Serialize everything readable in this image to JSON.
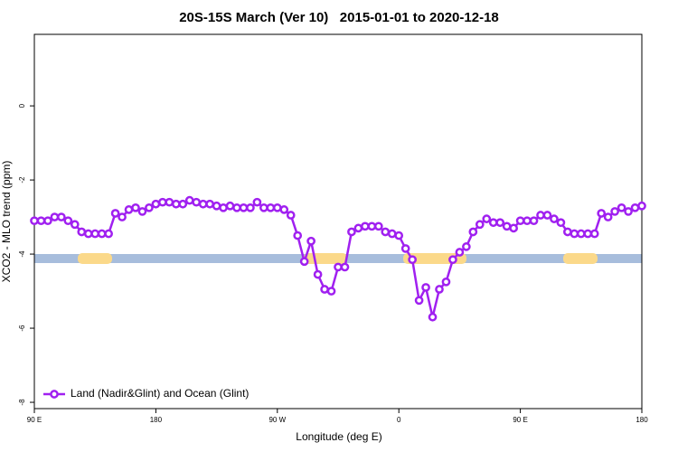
{
  "chart_data": {
    "type": "line",
    "title": "20S-15S March (Ver 10)   2015-01-01 to 2020-12-18",
    "xlabel": "Longitude (deg E)",
    "ylabel": "XCO2 - MLO trend (ppm)",
    "xlim": [
      90,
      540
    ],
    "ylim": [
      -8.17,
      1.93
    ],
    "xticks": [
      {
        "value": 90,
        "label": "90 E"
      },
      {
        "value": 180,
        "label": "180"
      },
      {
        "value": 270,
        "label": "90 W"
      },
      {
        "value": 360,
        "label": "0"
      },
      {
        "value": 450,
        "label": "90 E"
      },
      {
        "value": 540,
        "label": "180"
      }
    ],
    "yticks": [
      0,
      -2,
      -4,
      -6,
      -8
    ],
    "legend": "bottom-left",
    "x": [
      90,
      95,
      100,
      105,
      110,
      115,
      120,
      125,
      130,
      135,
      140,
      145,
      150,
      155,
      160,
      165,
      170,
      175,
      180,
      185,
      190,
      195,
      200,
      205,
      210,
      215,
      220,
      225,
      230,
      235,
      240,
      245,
      250,
      255,
      260,
      265,
      270,
      275,
      280,
      285,
      290,
      295,
      300,
      305,
      310,
      315,
      320,
      325,
      330,
      335,
      340,
      345,
      350,
      355,
      360,
      365,
      370,
      375,
      380,
      385,
      390,
      395,
      400,
      405,
      410,
      415,
      420,
      425,
      430,
      435,
      440,
      445,
      450,
      455,
      460,
      465,
      470,
      475,
      480,
      485,
      490,
      495,
      500,
      505,
      510,
      515,
      520,
      525,
      530,
      535,
      540
    ],
    "series": [
      {
        "name": "Land (Nadir&Glint) and Ocean (Glint)",
        "color": "#a020f0",
        "values": [
          -3.1,
          -3.1,
          -3.1,
          -3.0,
          -3.0,
          -3.1,
          -3.2,
          -3.4,
          -3.45,
          -3.45,
          -3.45,
          -3.45,
          -2.9,
          -3.0,
          -2.8,
          -2.75,
          -2.85,
          -2.75,
          -2.65,
          -2.6,
          -2.6,
          -2.65,
          -2.65,
          -2.55,
          -2.6,
          -2.65,
          -2.65,
          -2.7,
          -2.75,
          -2.7,
          -2.75,
          -2.75,
          -2.75,
          -2.6,
          -2.75,
          -2.75,
          -2.75,
          -2.8,
          -2.95,
          -3.5,
          -4.2,
          -3.65,
          -4.55,
          -4.95,
          -5.0,
          -4.35,
          -4.35,
          -3.4,
          -3.3,
          -3.25,
          -3.25,
          -3.25,
          -3.4,
          -3.45,
          -3.5,
          -3.85,
          -4.15,
          -5.25,
          -4.9,
          -5.7,
          -4.95,
          -4.75,
          -4.15,
          -3.95,
          -3.8,
          -3.4,
          -3.2,
          -3.05,
          -3.15,
          -3.15,
          -3.25,
          -3.3,
          -3.1,
          -3.1,
          -3.1,
          -2.95,
          -2.95,
          -3.05,
          -3.15,
          -3.4,
          -3.45,
          -3.45,
          -3.45,
          -3.45,
          -2.9,
          -3.0,
          -2.85,
          -2.75,
          -2.85,
          -2.75,
          -2.7
        ]
      }
    ]
  }
}
